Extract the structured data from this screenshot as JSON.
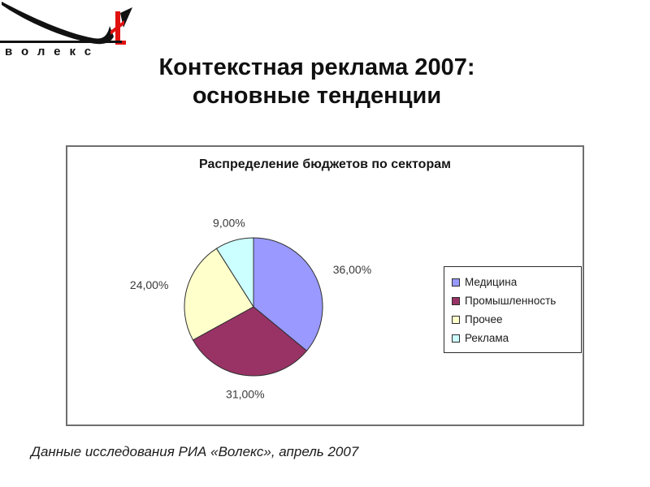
{
  "logo": {
    "text": "волекс",
    "accent_color": "#e01210"
  },
  "title": {
    "line1": "Контекстная реклама 2007:",
    "line2": "основные тенденции"
  },
  "chart_data": {
    "type": "pie",
    "title": "Распределение бюджетов по секторам",
    "categories": [
      "Медицина",
      "Промышленность",
      "Прочее",
      "Реклама"
    ],
    "values": [
      36,
      31,
      24,
      9
    ],
    "labels": [
      "36,00%",
      "31,00%",
      "24,00%",
      "9,00%"
    ],
    "colors": [
      "#9999FF",
      "#993366",
      "#FFFFCC",
      "#CCFFFF"
    ],
    "start_angle_deg": 0,
    "direction": "clockwise",
    "legend_position": "right",
    "legend_border": "#2c2c2c",
    "slice_stroke": "#2f2f2f"
  },
  "footer": {
    "text": "Данные исследования РИА «Волекс», апрель 2007"
  }
}
